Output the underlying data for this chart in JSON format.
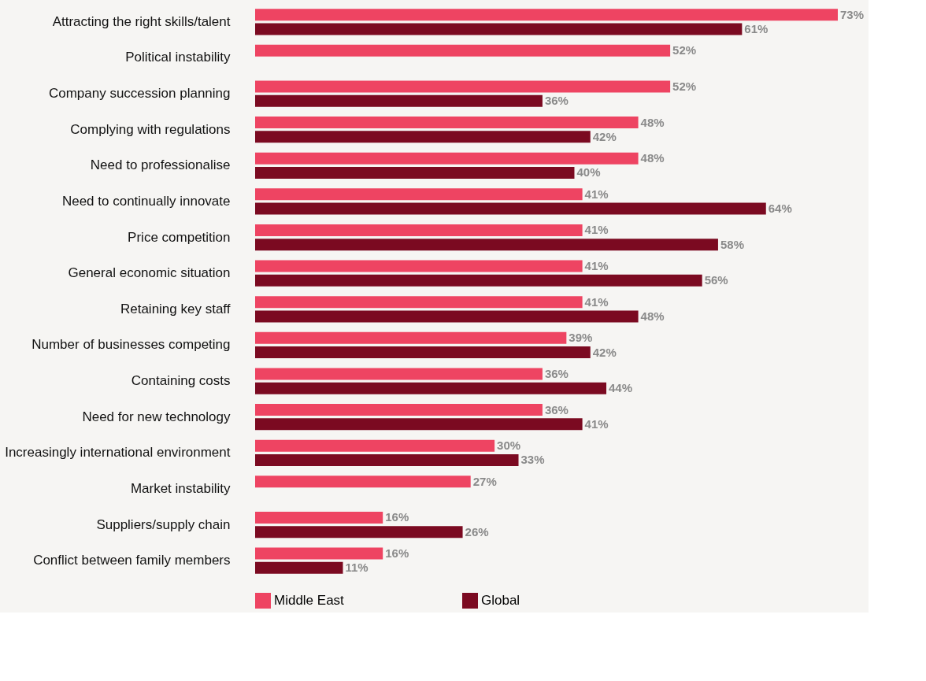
{
  "chart_data": {
    "type": "bar",
    "orientation": "horizontal",
    "categories": [
      "Attracting the right skills/talent",
      "Political instability",
      "Company succession planning",
      "Complying with regulations",
      "Need to professionalise",
      "Need to continually innovate",
      "Price competition",
      "General economic situation",
      "Retaining key staff",
      "Number of businesses competing",
      "Containing costs",
      "Need for new technology",
      "Increasingly international environment",
      "Market instability",
      "Suppliers/supply chain",
      "Conflict between family members"
    ],
    "series": [
      {
        "name": "Middle East",
        "color": "#ee4462",
        "values": [
          73,
          52,
          52,
          48,
          48,
          41,
          41,
          41,
          41,
          39,
          36,
          36,
          30,
          27,
          16,
          16
        ],
        "value_labels": [
          "73%",
          "52%",
          "52%",
          "48%",
          "48%",
          "41%",
          "41%",
          "41%",
          "41%",
          "39%",
          "36%",
          "36%",
          "30%",
          "27%",
          "16%",
          "16%"
        ]
      },
      {
        "name": "Global",
        "color": "#7b0a21",
        "values": [
          61,
          null,
          36,
          42,
          40,
          64,
          58,
          56,
          48,
          42,
          44,
          41,
          33,
          null,
          26,
          11
        ],
        "value_labels": [
          "61%",
          null,
          "36%",
          "42%",
          "40%",
          "64%",
          "58%",
          "56%",
          "48%",
          "42%",
          "44%",
          "41%",
          "33%",
          null,
          "26%",
          "11%"
        ]
      }
    ],
    "legend": "bottom",
    "grid": false
  }
}
